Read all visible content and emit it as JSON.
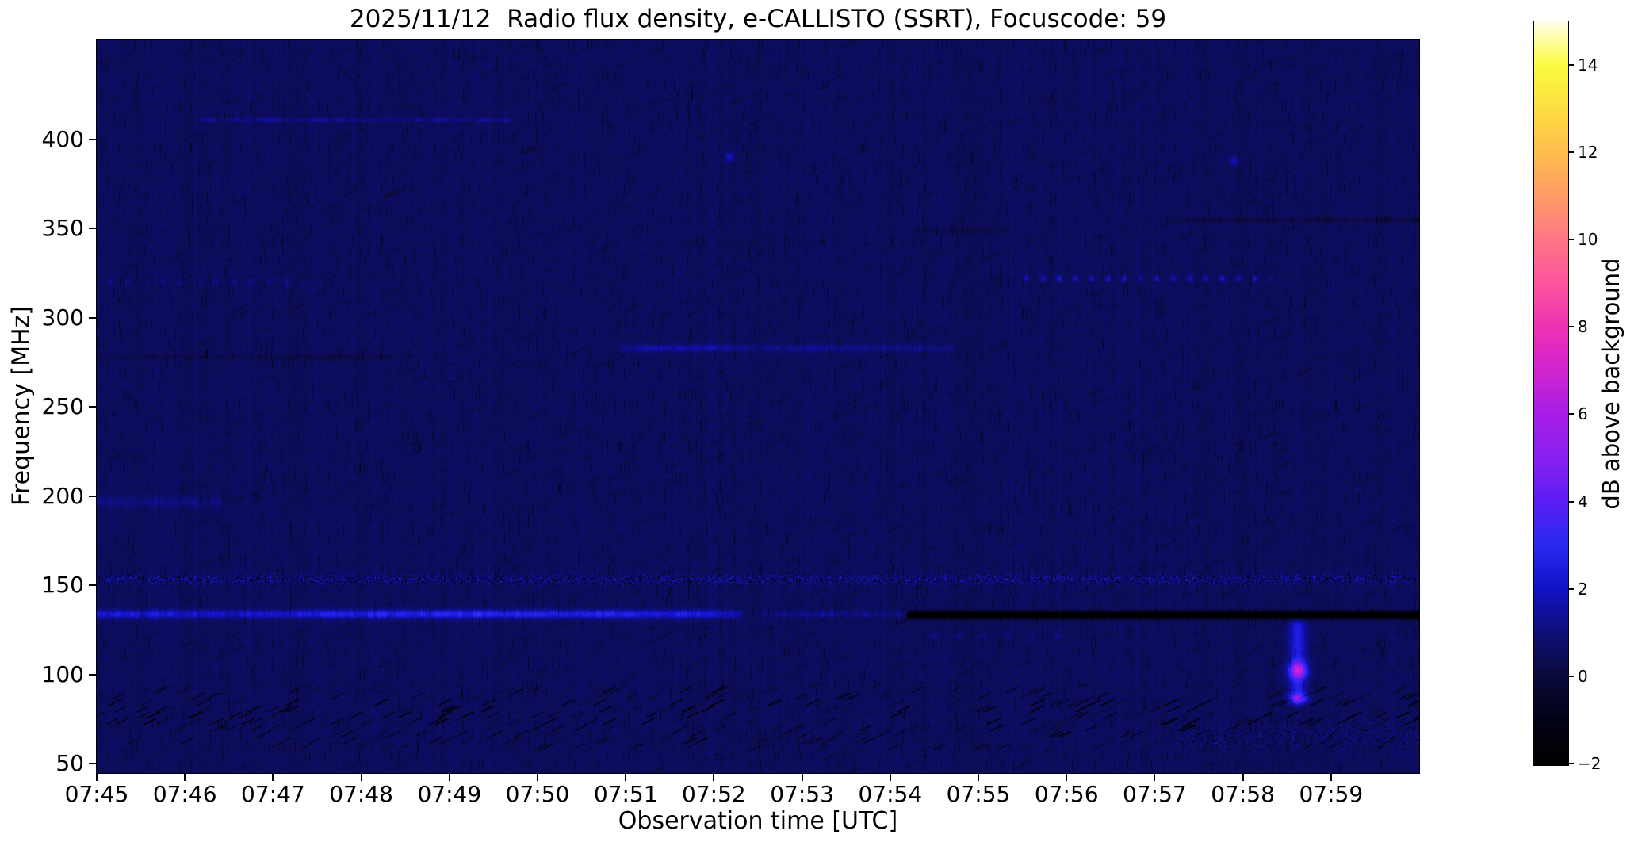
{
  "chart_data": {
    "type": "heatmap",
    "title": "2025/11/12  Radio flux density, e-CALLISTO (SSRT), Focuscode: 59",
    "xlabel": "Observation time [UTC]",
    "ylabel": "Frequency [MHz]",
    "colorbar_label": "dB above background",
    "x_axis": {
      "start_time": "07:45",
      "end_time": "08:00",
      "range_minutes": [
        0,
        15.0
      ],
      "ticks": [
        {
          "label": "07:45",
          "t": 0
        },
        {
          "label": "07:46",
          "t": 1
        },
        {
          "label": "07:47",
          "t": 2
        },
        {
          "label": "07:48",
          "t": 3
        },
        {
          "label": "07:49",
          "t": 4
        },
        {
          "label": "07:50",
          "t": 5
        },
        {
          "label": "07:51",
          "t": 6
        },
        {
          "label": "07:52",
          "t": 7
        },
        {
          "label": "07:53",
          "t": 8
        },
        {
          "label": "07:54",
          "t": 9
        },
        {
          "label": "07:55",
          "t": 10
        },
        {
          "label": "07:56",
          "t": 11
        },
        {
          "label": "07:57",
          "t": 12
        },
        {
          "label": "07:58",
          "t": 13
        },
        {
          "label": "07:59",
          "t": 14
        }
      ]
    },
    "y_axis": {
      "range_mhz": [
        44.7,
        455.8
      ],
      "ticks": [
        {
          "label": "400",
          "freq": 400
        },
        {
          "label": "350",
          "freq": 350
        },
        {
          "label": "300",
          "freq": 300
        },
        {
          "label": "250",
          "freq": 250
        },
        {
          "label": "200",
          "freq": 200
        },
        {
          "label": "150",
          "freq": 150
        },
        {
          "label": "100",
          "freq": 100
        },
        {
          "label": "50",
          "freq": 50
        }
      ]
    },
    "colorbar": {
      "range_db": [
        -2.04,
        15.0
      ],
      "ticks": [
        {
          "label": "14",
          "value": 14
        },
        {
          "label": "12",
          "value": 12
        },
        {
          "label": "10",
          "value": 10
        },
        {
          "label": "8",
          "value": 8
        },
        {
          "label": "6",
          "value": 6
        },
        {
          "label": "4",
          "value": 4
        },
        {
          "label": "2",
          "value": 2
        },
        {
          "label": "0",
          "value": 0
        },
        {
          "label": "−2",
          "value": -2
        }
      ]
    },
    "colormap_stops": [
      [
        -2.04,
        "#000000"
      ],
      [
        -1.0,
        "#020216"
      ],
      [
        0.0,
        "#0b0b3c"
      ],
      [
        1.0,
        "#0e0e78"
      ],
      [
        2.0,
        "#1212c8"
      ],
      [
        3.0,
        "#2a2af2"
      ],
      [
        4.0,
        "#5a1ef2"
      ],
      [
        5.0,
        "#8a20f0"
      ],
      [
        6.0,
        "#a81ee6"
      ],
      [
        7.0,
        "#d024cf"
      ],
      [
        8.0,
        "#ee32b6"
      ],
      [
        9.0,
        "#fb559c"
      ],
      [
        10.0,
        "#ff7685"
      ],
      [
        11.0,
        "#ff9b67"
      ],
      [
        12.0,
        "#ffbc4f"
      ],
      [
        13.0,
        "#fdde41"
      ],
      [
        14.0,
        "#fbfb40"
      ],
      [
        15.0,
        "#ffffe8"
      ]
    ],
    "background_level_db": 0.55,
    "noise": {
      "pixel": 0.75,
      "column": 0.35,
      "dark_dash": 1.0,
      "diagonal": 0.5,
      "bright_fleck": 1.1
    },
    "features": [
      {
        "name": "emission-line-134-bright",
        "type": "hline",
        "freq": 134,
        "fw": 2.4,
        "t0": -0.2,
        "t1": 7.35,
        "amp": 2.7,
        "dash": 0.25,
        "profile": [
          [
            0,
            0.85
          ],
          [
            0.7,
            0.75
          ],
          [
            1.5,
            0.65
          ],
          [
            2.5,
            0.85
          ],
          [
            3.2,
            1.0
          ],
          [
            4.5,
            1.05
          ],
          [
            5.7,
            1.0
          ],
          [
            6.5,
            0.9
          ],
          [
            7.0,
            0.75
          ],
          [
            7.35,
            0.5
          ]
        ]
      },
      {
        "name": "emission-line-134-faint",
        "type": "hline",
        "freq": 134,
        "fw": 1.8,
        "t0": 7.5,
        "t1": 9.25,
        "amp": 1.0,
        "dash": 0.5
      },
      {
        "name": "absorption-line-134",
        "type": "hline",
        "freq": 133.5,
        "fw": 2.0,
        "t0": 9.15,
        "t1": 15.2,
        "amp": -3.5,
        "dash": 0.08
      },
      {
        "name": "rfi-speckle-band-153",
        "type": "speckle_band",
        "freq": 153.5,
        "fw": 3.2,
        "amp": 1.7
      },
      {
        "name": "rfi-line-411",
        "type": "hline",
        "freq": 411,
        "fw": 1.2,
        "t0": 1.15,
        "t1": 4.75,
        "amp": 1.05,
        "dash": 0.55
      },
      {
        "name": "rfi-line-283",
        "type": "hline",
        "freq": 283,
        "fw": 2.0,
        "t0": 5.9,
        "t1": 9.75,
        "amp": 1.35,
        "dash": 0.3,
        "profile": [
          [
            5.9,
            0.55
          ],
          [
            6.3,
            1.0
          ],
          [
            7.0,
            0.95
          ],
          [
            7.5,
            0.5
          ],
          [
            8.1,
            0.75
          ],
          [
            8.8,
            0.6
          ],
          [
            9.4,
            0.55
          ],
          [
            9.75,
            0.4
          ]
        ]
      },
      {
        "name": "dark-line-278",
        "type": "hline",
        "freq": 278,
        "fw": 1.4,
        "t0": -0.2,
        "t1": 3.4,
        "amp": -0.55,
        "dash": 0.5
      },
      {
        "name": "dark-line-355",
        "type": "hline",
        "freq": 355,
        "fw": 1.3,
        "t0": 12.1,
        "t1": 15.2,
        "amp": -0.85,
        "dash": 0.55
      },
      {
        "name": "dark-smudge-349",
        "type": "hline",
        "freq": 349,
        "fw": 1.6,
        "t0": 9.25,
        "t1": 10.4,
        "amp": -0.5,
        "dash": 0.5
      },
      {
        "name": "dot-row-322-right",
        "type": "dot_row",
        "freq": 322,
        "fw": 1.6,
        "t0": 10.45,
        "t1": 13.35,
        "period": 0.185,
        "amp": 1.9
      },
      {
        "name": "dot-row-320-left",
        "type": "dot_row",
        "freq": 320,
        "fw": 1.5,
        "t0": 0.05,
        "t1": 2.6,
        "period": 0.2,
        "amp": 0.85
      },
      {
        "name": "dot-row-122",
        "type": "dot_row",
        "freq": 122,
        "fw": 1.5,
        "t0": 9.35,
        "t1": 11.1,
        "period": 0.28,
        "amp": 0.8
      },
      {
        "name": "patch-197-left",
        "type": "hline",
        "freq": 197,
        "fw": 3.0,
        "t0": -0.2,
        "t1": 1.45,
        "amp": 0.8,
        "dash": 0.4
      },
      {
        "name": "dot-390-a",
        "type": "dot",
        "freq": 390,
        "fw": 2.5,
        "t": 7.18,
        "tw": 0.05,
        "amp": 1.6
      },
      {
        "name": "dot-390-b",
        "type": "dot",
        "freq": 388,
        "fw": 2.5,
        "t": 12.9,
        "tw": 0.05,
        "amp": 1.3
      },
      {
        "name": "type-iii-burst-0758",
        "type": "vburst",
        "t": 13.62,
        "tw": 0.1,
        "freq0": 80,
        "freq1": 133,
        "amp": 2.0,
        "cores": [
          {
            "freq": 102.5,
            "fw": 4.5,
            "amp": 4.6
          },
          {
            "freq": 87,
            "fw": 2.5,
            "amp": 3.0
          }
        ]
      },
      {
        "name": "chevron-band-low",
        "type": "chevron_band",
        "freq0": 56,
        "freq1": 96,
        "amp": 1.4
      },
      {
        "name": "chevron-band-80",
        "type": "chevron_band",
        "freq0": 70,
        "freq1": 88,
        "amp": 0.8
      },
      {
        "name": "bright-flecks-bottom-right",
        "type": "speckle_band",
        "freq": 66,
        "fw": 9,
        "t0": 12.2,
        "t1": 15.2,
        "amp": 0.8
      }
    ]
  },
  "colors": {
    "figure_background": "#ffffff",
    "text": "#000000",
    "frame": "#000000"
  }
}
